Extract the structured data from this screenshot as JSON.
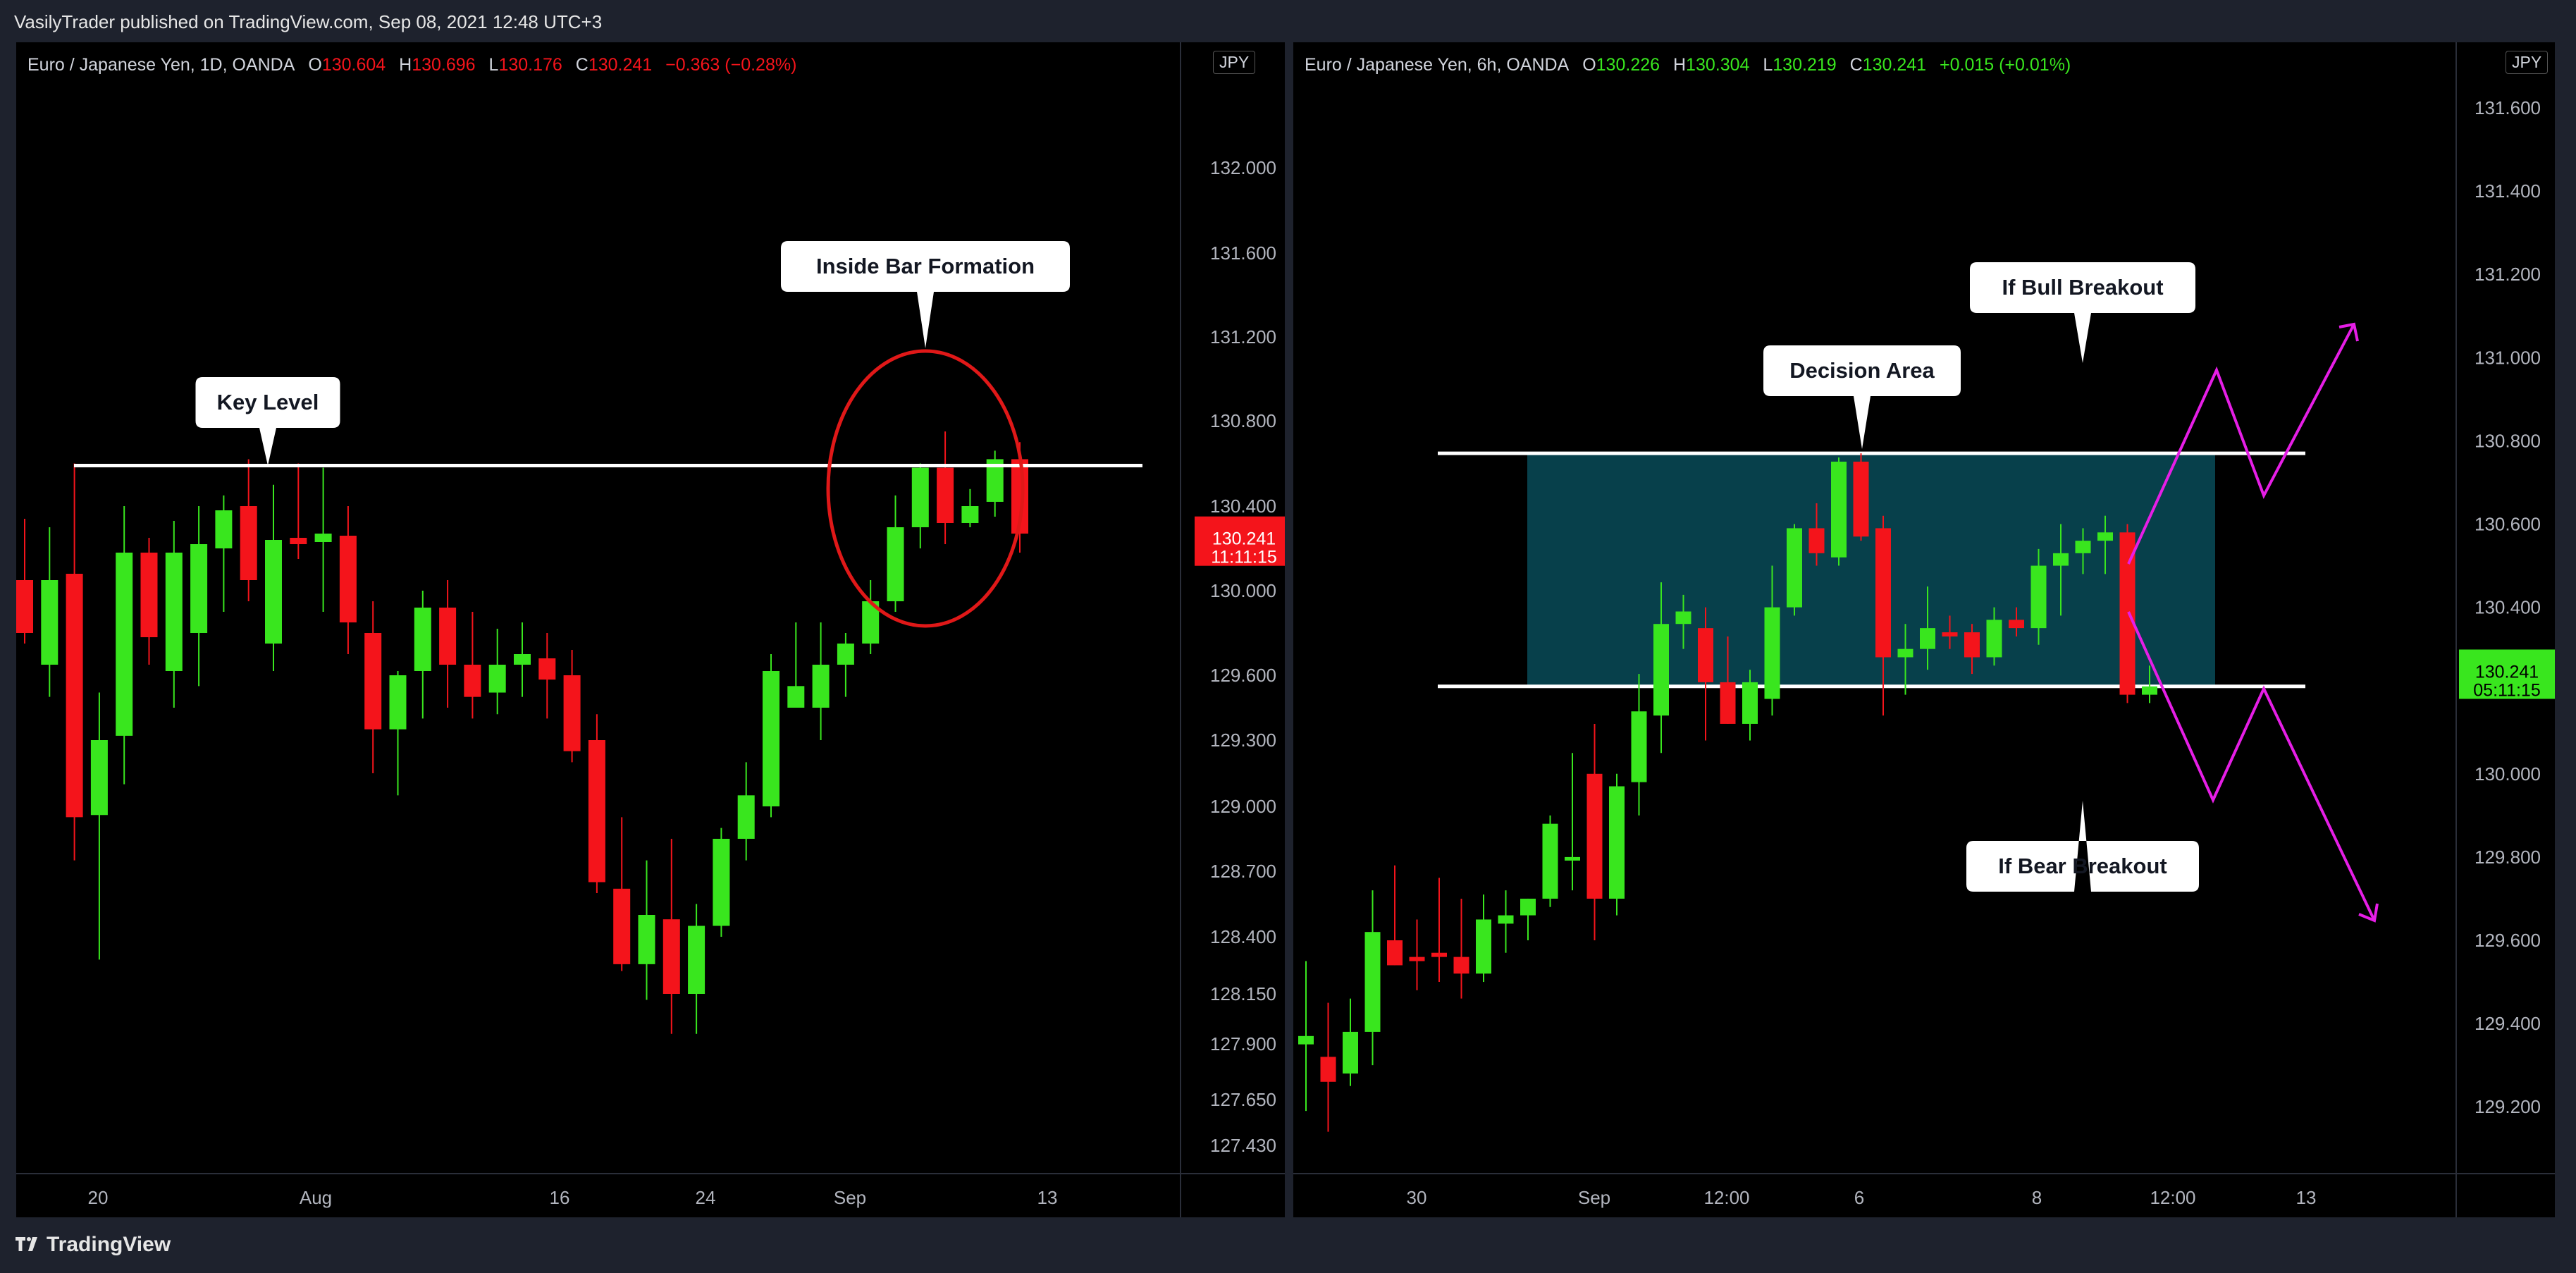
{
  "header": {
    "publisher": "VasilyTrader published on TradingView.com, Sep 08, 2021 12:48 UTC+3"
  },
  "footer": {
    "brand": "TradingView",
    "logo_icon": "tradingview-logo-icon"
  },
  "colors": {
    "up": "#39e61e",
    "down": "#f4141b",
    "annotation_magenta": "#e61ee6",
    "range_fill": "#07404b",
    "circle": "#e01818"
  },
  "chart_data": [
    {
      "type": "candlestick",
      "title": "Euro / Japanese Yen, 1D, OANDA",
      "ohlc": {
        "o_label": "O",
        "o": "130.604",
        "h_label": "H",
        "h": "130.696",
        "l_label": "L",
        "l": "130.176",
        "c_label": "C",
        "c": "130.241",
        "change": "−0.363 (−0.28%)"
      },
      "currency": "JPY",
      "last_price": {
        "value": "130.241",
        "countdown": "11:11:15"
      },
      "y_ticks": [
        "132.000",
        "131.600",
        "131.200",
        "130.800",
        "130.400",
        "130.000",
        "129.600",
        "129.300",
        "129.000",
        "128.700",
        "128.400",
        "128.150",
        "127.900",
        "127.650",
        "127.430"
      ],
      "x_ticks": [
        "20",
        "Aug",
        "16",
        "24",
        "Sep",
        "13"
      ],
      "candles": [
        {
          "o": 130.05,
          "h": 130.34,
          "l": 129.75,
          "c": 129.8
        },
        {
          "o": 129.65,
          "h": 130.3,
          "l": 129.5,
          "c": 130.05
        },
        {
          "o": 130.08,
          "h": 130.6,
          "l": 128.75,
          "c": 128.95
        },
        {
          "o": 128.96,
          "h": 129.52,
          "l": 128.3,
          "c": 129.3
        },
        {
          "o": 129.32,
          "h": 130.4,
          "l": 129.1,
          "c": 130.18
        },
        {
          "o": 130.18,
          "h": 130.25,
          "l": 129.65,
          "c": 129.78
        },
        {
          "o": 129.62,
          "h": 130.33,
          "l": 129.45,
          "c": 130.18
        },
        {
          "o": 129.8,
          "h": 130.4,
          "l": 129.55,
          "c": 130.22
        },
        {
          "o": 130.2,
          "h": 130.45,
          "l": 129.9,
          "c": 130.38
        },
        {
          "o": 130.4,
          "h": 130.62,
          "l": 129.95,
          "c": 130.05
        },
        {
          "o": 129.75,
          "h": 130.5,
          "l": 129.62,
          "c": 130.24
        },
        {
          "o": 130.25,
          "h": 130.6,
          "l": 130.15,
          "c": 130.22
        },
        {
          "o": 130.23,
          "h": 130.58,
          "l": 129.9,
          "c": 130.27
        },
        {
          "o": 130.26,
          "h": 130.4,
          "l": 129.7,
          "c": 129.85
        },
        {
          "o": 129.8,
          "h": 129.95,
          "l": 129.15,
          "c": 129.35
        },
        {
          "o": 129.35,
          "h": 129.62,
          "l": 129.05,
          "c": 129.6
        },
        {
          "o": 129.62,
          "h": 130.0,
          "l": 129.4,
          "c": 129.92
        },
        {
          "o": 129.92,
          "h": 130.05,
          "l": 129.45,
          "c": 129.65
        },
        {
          "o": 129.65,
          "h": 129.9,
          "l": 129.4,
          "c": 129.5
        },
        {
          "o": 129.52,
          "h": 129.82,
          "l": 129.42,
          "c": 129.65
        },
        {
          "o": 129.65,
          "h": 129.85,
          "l": 129.5,
          "c": 129.7
        },
        {
          "o": 129.68,
          "h": 129.8,
          "l": 129.4,
          "c": 129.58
        },
        {
          "o": 129.6,
          "h": 129.72,
          "l": 129.2,
          "c": 129.25
        },
        {
          "o": 129.3,
          "h": 129.42,
          "l": 128.6,
          "c": 128.65
        },
        {
          "o": 128.62,
          "h": 128.95,
          "l": 128.25,
          "c": 128.28
        },
        {
          "o": 128.28,
          "h": 128.75,
          "l": 128.12,
          "c": 128.5
        },
        {
          "o": 128.48,
          "h": 128.85,
          "l": 127.95,
          "c": 128.15
        },
        {
          "o": 128.15,
          "h": 128.55,
          "l": 127.95,
          "c": 128.45
        },
        {
          "o": 128.45,
          "h": 128.9,
          "l": 128.4,
          "c": 128.85
        },
        {
          "o": 128.85,
          "h": 129.2,
          "l": 128.75,
          "c": 129.05
        },
        {
          "o": 129.0,
          "h": 129.7,
          "l": 128.95,
          "c": 129.62
        },
        {
          "o": 129.45,
          "h": 129.85,
          "l": 129.45,
          "c": 129.55
        },
        {
          "o": 129.45,
          "h": 129.85,
          "l": 129.3,
          "c": 129.65
        },
        {
          "o": 129.65,
          "h": 129.8,
          "l": 129.5,
          "c": 129.75
        },
        {
          "o": 129.75,
          "h": 130.05,
          "l": 129.7,
          "c": 129.95
        },
        {
          "o": 129.95,
          "h": 130.45,
          "l": 129.9,
          "c": 130.3
        },
        {
          "o": 130.3,
          "h": 130.6,
          "l": 130.2,
          "c": 130.58
        },
        {
          "o": 130.58,
          "h": 130.75,
          "l": 130.22,
          "c": 130.32
        },
        {
          "o": 130.32,
          "h": 130.48,
          "l": 130.3,
          "c": 130.4
        },
        {
          "o": 130.42,
          "h": 130.66,
          "l": 130.35,
          "c": 130.62
        },
        {
          "o": 130.62,
          "h": 130.7,
          "l": 130.18,
          "c": 130.27
        }
      ],
      "annotations": [
        {
          "text": "Key Level",
          "price": 130.59
        },
        {
          "text": "Inside Bar Formation"
        }
      ]
    },
    {
      "type": "candlestick",
      "title": "Euro / Japanese Yen, 6h, OANDA",
      "ohlc": {
        "o_label": "O",
        "o": "130.226",
        "h_label": "H",
        "h": "130.304",
        "l_label": "L",
        "l": "130.219",
        "c_label": "C",
        "c": "130.241",
        "change": "+0.015 (+0.01%)"
      },
      "currency": "JPY",
      "last_price": {
        "value": "130.241",
        "countdown": "05:11:15"
      },
      "y_ticks": [
        "131.600",
        "131.400",
        "131.200",
        "131.000",
        "130.800",
        "130.600",
        "130.400",
        "130.200",
        "130.000",
        "129.800",
        "129.600",
        "129.400",
        "129.200"
      ],
      "x_ticks": [
        "30",
        "Sep",
        "12:00",
        "6",
        "8",
        "12:00",
        "13"
      ],
      "candles": [
        {
          "o": 129.35,
          "h": 129.55,
          "l": 129.19,
          "c": 129.37
        },
        {
          "o": 129.32,
          "h": 129.45,
          "l": 129.14,
          "c": 129.26
        },
        {
          "o": 129.28,
          "h": 129.46,
          "l": 129.25,
          "c": 129.38
        },
        {
          "o": 129.38,
          "h": 129.72,
          "l": 129.3,
          "c": 129.62
        },
        {
          "o": 129.6,
          "h": 129.78,
          "l": 129.54,
          "c": 129.54
        },
        {
          "o": 129.56,
          "h": 129.65,
          "l": 129.48,
          "c": 129.55
        },
        {
          "o": 129.57,
          "h": 129.75,
          "l": 129.5,
          "c": 129.56
        },
        {
          "o": 129.56,
          "h": 129.7,
          "l": 129.46,
          "c": 129.52
        },
        {
          "o": 129.52,
          "h": 129.71,
          "l": 129.5,
          "c": 129.65
        },
        {
          "o": 129.64,
          "h": 129.72,
          "l": 129.57,
          "c": 129.66
        },
        {
          "o": 129.66,
          "h": 129.7,
          "l": 129.6,
          "c": 129.7
        },
        {
          "o": 129.7,
          "h": 129.9,
          "l": 129.68,
          "c": 129.88
        },
        {
          "o": 129.8,
          "h": 130.05,
          "l": 129.72,
          "c": 129.8
        },
        {
          "o": 130.0,
          "h": 130.12,
          "l": 129.6,
          "c": 129.7
        },
        {
          "o": 129.7,
          "h": 130.0,
          "l": 129.66,
          "c": 129.97
        },
        {
          "o": 129.98,
          "h": 130.24,
          "l": 129.9,
          "c": 130.15
        },
        {
          "o": 130.14,
          "h": 130.46,
          "l": 130.05,
          "c": 130.36
        },
        {
          "o": 130.36,
          "h": 130.43,
          "l": 130.3,
          "c": 130.39
        },
        {
          "o": 130.35,
          "h": 130.4,
          "l": 130.08,
          "c": 130.22
        },
        {
          "o": 130.22,
          "h": 130.33,
          "l": 130.12,
          "c": 130.12
        },
        {
          "o": 130.12,
          "h": 130.25,
          "l": 130.08,
          "c": 130.22
        },
        {
          "o": 130.18,
          "h": 130.5,
          "l": 130.14,
          "c": 130.4
        },
        {
          "o": 130.4,
          "h": 130.6,
          "l": 130.38,
          "c": 130.59
        },
        {
          "o": 130.59,
          "h": 130.65,
          "l": 130.5,
          "c": 130.53
        },
        {
          "o": 130.52,
          "h": 130.76,
          "l": 130.5,
          "c": 130.75
        },
        {
          "o": 130.75,
          "h": 130.77,
          "l": 130.56,
          "c": 130.57
        },
        {
          "o": 130.59,
          "h": 130.62,
          "l": 130.14,
          "c": 130.28
        },
        {
          "o": 130.28,
          "h": 130.36,
          "l": 130.19,
          "c": 130.3
        },
        {
          "o": 130.3,
          "h": 130.45,
          "l": 130.25,
          "c": 130.35
        },
        {
          "o": 130.34,
          "h": 130.38,
          "l": 130.3,
          "c": 130.33
        },
        {
          "o": 130.34,
          "h": 130.36,
          "l": 130.24,
          "c": 130.28
        },
        {
          "o": 130.28,
          "h": 130.4,
          "l": 130.26,
          "c": 130.37
        },
        {
          "o": 130.37,
          "h": 130.4,
          "l": 130.33,
          "c": 130.35
        },
        {
          "o": 130.35,
          "h": 130.54,
          "l": 130.31,
          "c": 130.5
        },
        {
          "o": 130.5,
          "h": 130.6,
          "l": 130.38,
          "c": 130.53
        },
        {
          "o": 130.53,
          "h": 130.59,
          "l": 130.48,
          "c": 130.56
        },
        {
          "o": 130.56,
          "h": 130.62,
          "l": 130.48,
          "c": 130.58
        },
        {
          "o": 130.58,
          "h": 130.6,
          "l": 130.17,
          "c": 130.19
        },
        {
          "o": 130.19,
          "h": 130.26,
          "l": 130.17,
          "c": 130.21
        }
      ],
      "range_top": 130.77,
      "range_bottom": 130.21,
      "annotations": [
        {
          "text": "Decision Area"
        },
        {
          "text": "If Bull Breakout"
        },
        {
          "text": "If Bear Breakout"
        }
      ]
    }
  ]
}
